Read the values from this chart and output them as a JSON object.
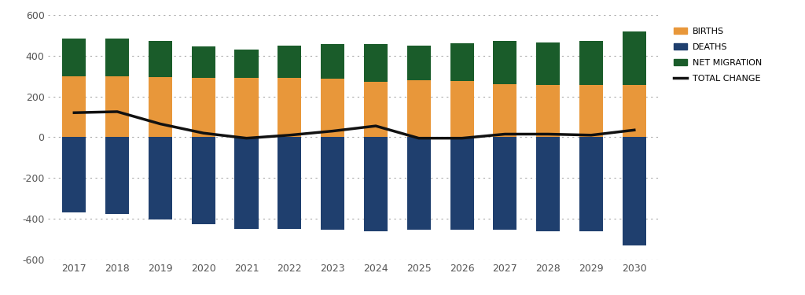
{
  "years": [
    2017,
    2018,
    2019,
    2020,
    2021,
    2022,
    2023,
    2024,
    2025,
    2026,
    2027,
    2028,
    2029,
    2030
  ],
  "births": [
    300,
    300,
    295,
    290,
    290,
    290,
    285,
    270,
    280,
    275,
    260,
    255,
    255,
    255
  ],
  "deaths": [
    -370,
    -375,
    -405,
    -425,
    -450,
    -450,
    -455,
    -460,
    -455,
    -455,
    -455,
    -460,
    -460,
    -530
  ],
  "net_migration": [
    185,
    185,
    175,
    155,
    140,
    160,
    170,
    185,
    170,
    185,
    210,
    210,
    215,
    265
  ],
  "total_change": [
    120,
    125,
    65,
    20,
    -5,
    10,
    30,
    55,
    -5,
    -5,
    15,
    15,
    10,
    35
  ],
  "births_color": "#E8973A",
  "deaths_color": "#1F3F6E",
  "net_migration_color": "#1A5C2A",
  "total_change_color": "#111111",
  "background_color": "#FFFFFF",
  "grid_color": "#AAAAAA",
  "ylim": [
    -600,
    600
  ],
  "yticks": [
    -600,
    -400,
    -200,
    0,
    200,
    400,
    600
  ],
  "legend_labels": [
    "BIRTHS",
    "DEATHS",
    "NET MIGRATION",
    "TOTAL CHANGE"
  ],
  "bar_width": 0.55
}
